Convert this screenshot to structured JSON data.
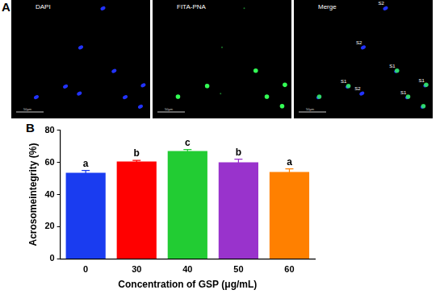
{
  "panel_a": {
    "label": "A",
    "panels": [
      "DAPI",
      "FITA-PNA",
      "Merge"
    ],
    "scale_bar": "50μm",
    "merge_labels": [
      "S2",
      "S2",
      "S1",
      "S1",
      "S2",
      "S1",
      "S1"
    ]
  },
  "chart_data": {
    "panel_label": "B",
    "type": "bar",
    "categories": [
      "0",
      "30",
      "40",
      "50",
      "60"
    ],
    "values": [
      53.5,
      60.5,
      67,
      60,
      54
    ],
    "errors": [
      1.5,
      0.7,
      1,
      2,
      2
    ],
    "colors": [
      "#1a3cf0",
      "#ff0000",
      "#22cc33",
      "#9933cc",
      "#ff8000"
    ],
    "significance_letters": [
      "a",
      "b",
      "c",
      "b",
      "a"
    ],
    "x_label": "Concentration of GSP (μg/mL)",
    "y_label": "Acrosomeintegrity (%)",
    "ylim": [
      0,
      80
    ],
    "yticks": [
      0,
      20,
      40,
      60,
      80
    ],
    "grid": false
  }
}
